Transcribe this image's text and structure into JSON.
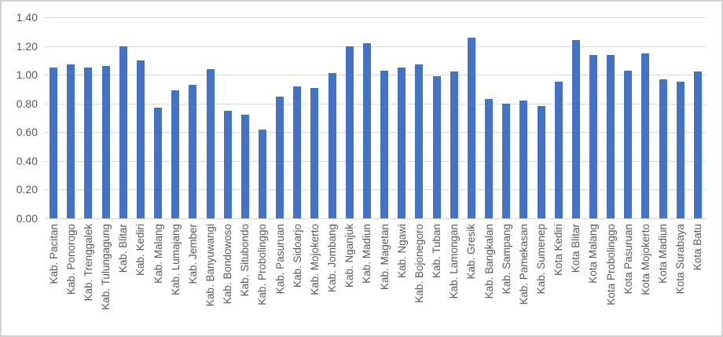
{
  "chart_data": {
    "type": "bar",
    "title": "",
    "xlabel": "",
    "ylabel": "",
    "legend": false,
    "grid": true,
    "ylim": [
      0,
      1.4
    ],
    "ytick_step": 0.2,
    "ytick_labels": [
      "0.00",
      "0.20",
      "0.40",
      "0.60",
      "0.80",
      "1.00",
      "1.20",
      "1.40"
    ],
    "bar_color": "#4472C4",
    "gridline_color": "#D9D9D9",
    "axis_label_color": "#595959",
    "categories": [
      "Kab. Pacitan",
      "Kab. Ponorogo",
      "Kab. Trenggalek",
      "Kab. Tulungagung",
      "Kab. Blitar",
      "Kab. Kediri",
      "Kab. Malang",
      "Kab. Lumajang",
      "Kab. Jember",
      "Kab. Banyuwangi",
      "Kab. Bondowoso",
      "Kab. Situbondo",
      "Kab. Probolinggo",
      "Kab. Pasuruan",
      "Kab. Sidoarjo",
      "Kab. Mojokerto",
      "Kab. Jombang",
      "Kab. Nganjuk",
      "Kab. Madiun",
      "Kab. Magetan",
      "Kab. Ngawi",
      "Kab. Bojonegoro",
      "Kab. Tuban",
      "Kab. Lamongan",
      "Kab. Gresik",
      "Kab. Bangkalan",
      "Kab. Sampang",
      "Kab. Pamekasan",
      "Kab. Sumenep",
      "Kota Kediri",
      "Kota Blitar",
      "Kota Malang",
      "Kota Probolinggo",
      "Kota Pasuruan",
      "Kota Mojokerto",
      "Kota Madiun",
      "Kota Surabaya",
      "Kota Batu"
    ],
    "values": [
      1.05,
      1.07,
      1.05,
      1.06,
      1.2,
      1.1,
      0.77,
      0.89,
      0.93,
      1.04,
      0.75,
      0.72,
      0.62,
      0.85,
      0.92,
      0.91,
      1.01,
      1.2,
      1.22,
      1.03,
      1.05,
      1.07,
      0.99,
      1.02,
      1.26,
      0.83,
      0.8,
      0.82,
      0.78,
      0.95,
      1.24,
      1.14,
      1.14,
      1.03,
      1.15,
      0.97,
      0.95,
      1.02
    ]
  }
}
